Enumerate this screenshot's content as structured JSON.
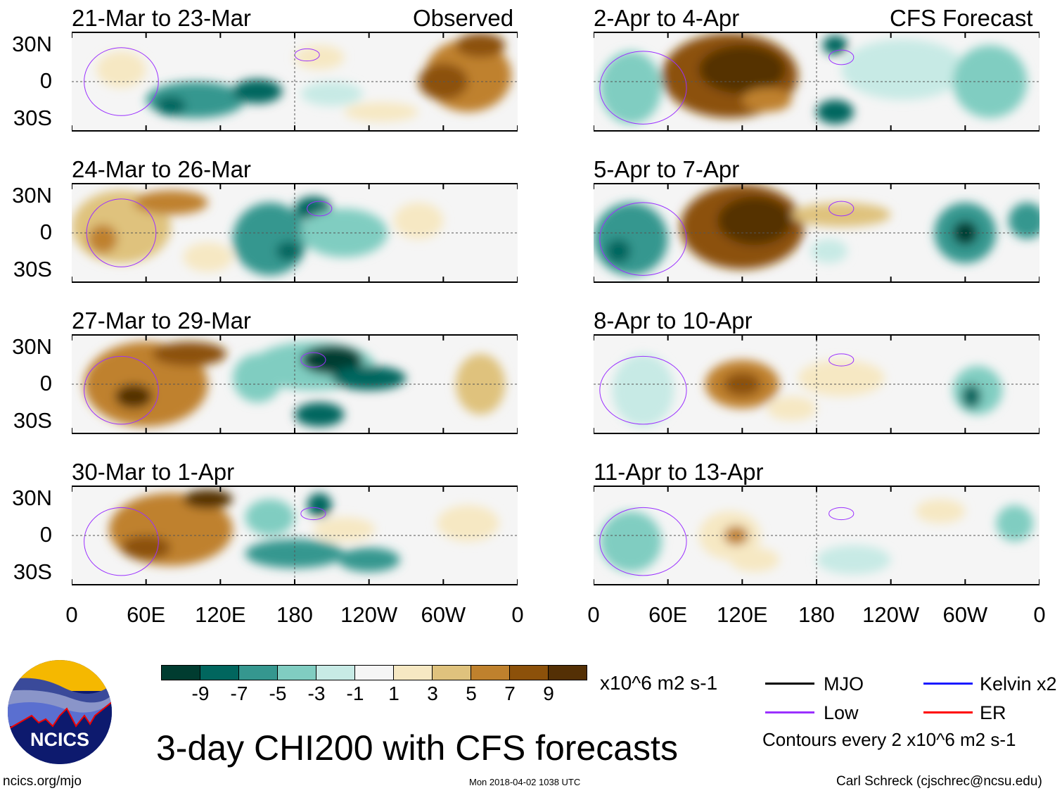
{
  "left_column": {
    "label": "Observed",
    "panels": [
      {
        "title": "21-Mar to 23-Mar"
      },
      {
        "title": "24-Mar to 26-Mar"
      },
      {
        "title": "27-Mar to 29-Mar"
      },
      {
        "title": "30-Mar to 1-Apr"
      }
    ]
  },
  "right_column": {
    "label": "CFS Forecast",
    "panels": [
      {
        "title": "2-Apr to 4-Apr"
      },
      {
        "title": "5-Apr to 7-Apr"
      },
      {
        "title": "8-Apr to 10-Apr"
      },
      {
        "title": "11-Apr to 13-Apr"
      }
    ]
  },
  "lat_labels": [
    "30N",
    "0",
    "30S"
  ],
  "lon_labels": [
    "0",
    "60E",
    "120E",
    "180",
    "120W",
    "60W",
    "0"
  ],
  "colorbar": {
    "levels": [
      "-9",
      "-7",
      "-5",
      "-3",
      "-1",
      "1",
      "3",
      "5",
      "7",
      "9"
    ],
    "colors": [
      "#003c30",
      "#01665e",
      "#35978f",
      "#80cdc1",
      "#c7eae5",
      "#f5f5f5",
      "#f6e8c3",
      "#dfc27d",
      "#bf812d",
      "#8c510a",
      "#543005"
    ],
    "units": "x10^6 m2 s-1"
  },
  "legend": {
    "items": [
      {
        "label": "MJO",
        "color": "#000000"
      },
      {
        "label": "Kelvin x2",
        "color": "#1a1aff"
      },
      {
        "label": "Low",
        "color": "#9b30ff"
      },
      {
        "label": "ER",
        "color": "#ff0000"
      }
    ],
    "note": "Contours every 2 x10^6 m2 s-1"
  },
  "title": "3-day CHI200 with CFS forecasts",
  "logo_text": "NCICS",
  "url": "ncics.org/mjo",
  "timestamp": "Mon 2018-04-02 1038 UTC",
  "credit": "Carl Schreck (cjschrec@ncsu.edu)"
}
